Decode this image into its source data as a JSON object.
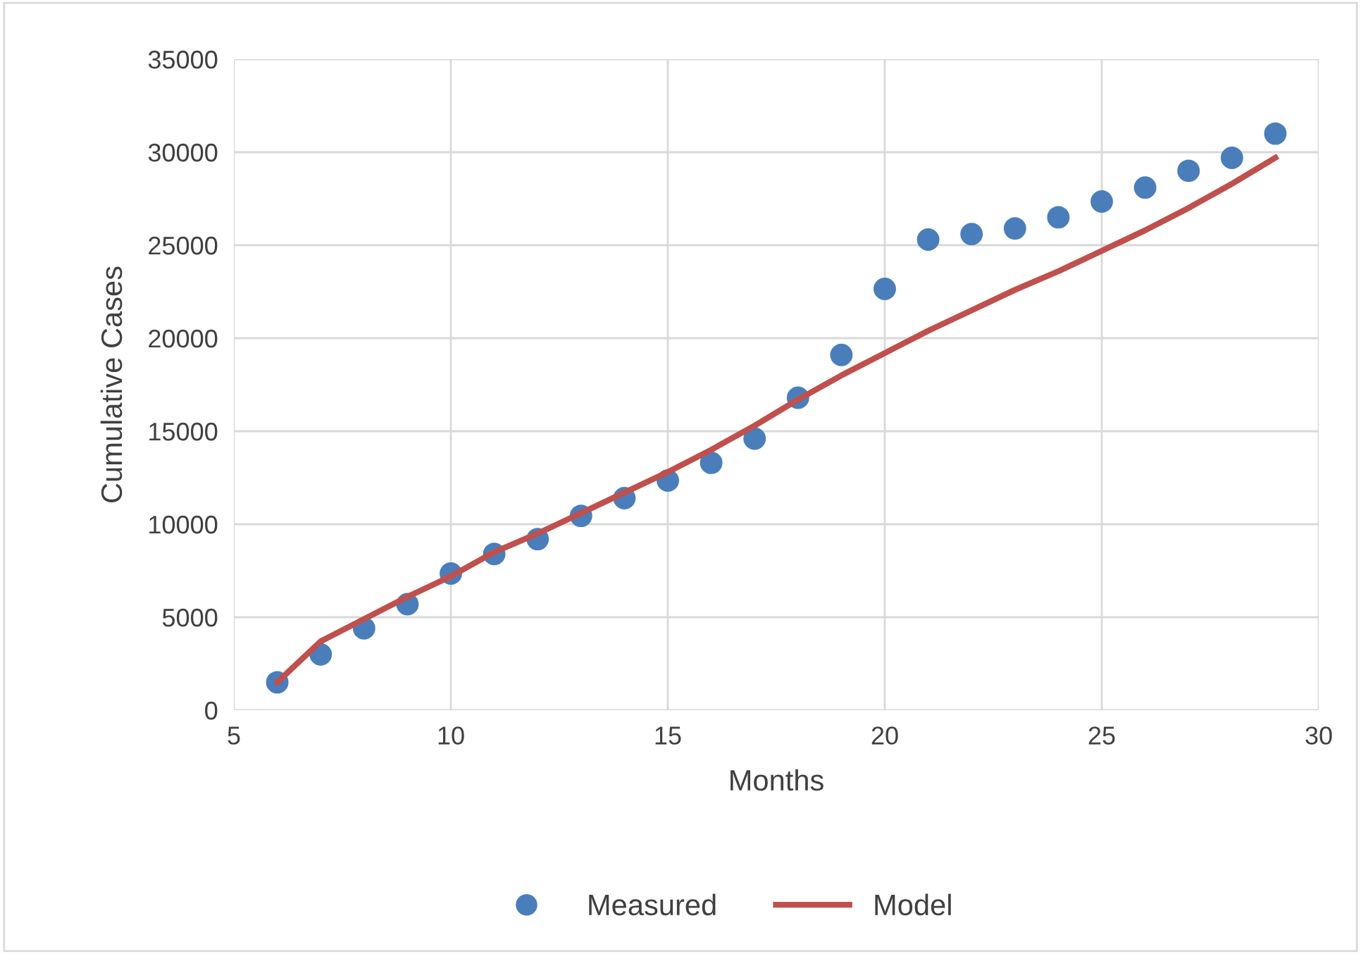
{
  "chart_data": {
    "type": "scatter",
    "xlabel": "Months",
    "ylabel": "Cumulative Cases",
    "xlim": [
      5,
      30
    ],
    "xticks": [
      5,
      10,
      15,
      20,
      25,
      30
    ],
    "ylim": [
      0,
      35000
    ],
    "yticks": [
      0,
      5000,
      10000,
      15000,
      20000,
      25000,
      30000,
      35000
    ],
    "grid": true,
    "legend": "bottom",
    "series": [
      {
        "name": "Measured",
        "marker": "circle",
        "color": "#4a7ebb",
        "x": [
          6,
          7,
          8,
          9,
          10,
          11,
          12,
          13,
          14,
          15,
          16,
          17,
          18,
          19,
          20,
          21,
          22,
          23,
          24,
          25,
          26,
          27,
          28,
          29
        ],
        "values": [
          1500,
          3000,
          4400,
          5700,
          7350,
          8400,
          9200,
          10450,
          11400,
          12350,
          13300,
          14600,
          16800,
          19100,
          22650,
          25300,
          25600,
          25900,
          26500,
          27350,
          28100,
          29000,
          29700,
          31000
        ]
      },
      {
        "name": "Model",
        "type": "line",
        "line_style": "solid",
        "color": "#c0504d",
        "x": [
          6,
          7,
          8,
          9,
          10,
          11,
          12,
          13,
          14,
          15,
          16,
          17,
          18,
          19,
          20,
          21,
          22,
          23,
          24,
          25,
          26,
          27,
          28,
          29
        ],
        "values": [
          1500,
          3700,
          4900,
          6100,
          7200,
          8500,
          9500,
          10600,
          11700,
          12800,
          14000,
          15300,
          16700,
          18000,
          19200,
          20400,
          21500,
          22600,
          23600,
          24700,
          25800,
          27000,
          28300,
          29700
        ]
      }
    ]
  }
}
